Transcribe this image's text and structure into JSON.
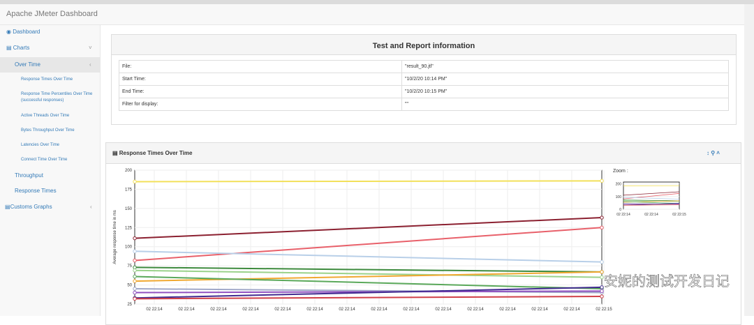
{
  "header": {
    "title": "Apache JMeter Dashboard"
  },
  "sidebar": {
    "items": [
      "Dashboard",
      "Charts",
      "Over Time",
      "Response Times Over Time",
      "Response Time Percentiles Over Time (successful responses)",
      "Active Threads Over Time",
      "Bytes Throughput Over Time",
      "Latencies Over Time",
      "Connect Time Over Time",
      "Throughput",
      "Response Times",
      "Customs Graphs"
    ]
  },
  "report": {
    "title": "Test and Report information",
    "rows": [
      [
        "File:",
        "\"result_90.jtl\""
      ],
      [
        "Start Time:",
        "\"10/2/20 10:14 PM\""
      ],
      [
        "End Time:",
        "\"10/2/20 10:15 PM\""
      ],
      [
        "Filter for display:",
        "\"\""
      ]
    ]
  },
  "chart": {
    "title": "Response Times Over Time",
    "ylabel": "Average response time in ms",
    "ylim": [
      25,
      200
    ],
    "yticks": [
      25,
      50,
      75,
      100,
      125,
      150,
      175,
      200
    ],
    "xlabels": [
      "02 22:14",
      "02 22:14",
      "02 22:14",
      "02 22:14",
      "02 22:14",
      "02 22:14",
      "02 22:14",
      "02 22:14",
      "02 22:14",
      "02 22:14",
      "02 22:14",
      "02 22:14",
      "02 22:14",
      "02 22:14",
      "02 22:15"
    ],
    "series": [
      {
        "color": "#f2e05a",
        "values": [
          185,
          186
        ]
      },
      {
        "color": "#8b2030",
        "values": [
          111,
          138
        ]
      },
      {
        "color": "#e8606a",
        "values": [
          82,
          125
        ]
      },
      {
        "color": "#b8cfe8",
        "values": [
          94,
          80
        ]
      },
      {
        "color": "#3d8a3d",
        "values": [
          73,
          67
        ]
      },
      {
        "color": "#9ad28a",
        "values": [
          69,
          60
        ]
      },
      {
        "color": "#f0a830",
        "values": [
          55,
          67
        ]
      },
      {
        "color": "#5aa85a",
        "values": [
          61,
          45
        ]
      },
      {
        "color": "#a0a8c8",
        "values": [
          45,
          40
        ]
      },
      {
        "color": "#9050c0",
        "values": [
          40,
          42
        ]
      },
      {
        "color": "#402a90",
        "values": [
          33,
          47
        ]
      },
      {
        "color": "#d04048",
        "values": [
          32,
          35
        ]
      }
    ]
  },
  "zoom": {
    "label": "Zoom :",
    "ylim": [
      0,
      215
    ],
    "yticks": [
      0,
      100,
      200
    ],
    "xlabels": [
      "02 22:14",
      "02 22:14",
      "02 22:15"
    ]
  },
  "watermark": "安妮的测试开发日记"
}
